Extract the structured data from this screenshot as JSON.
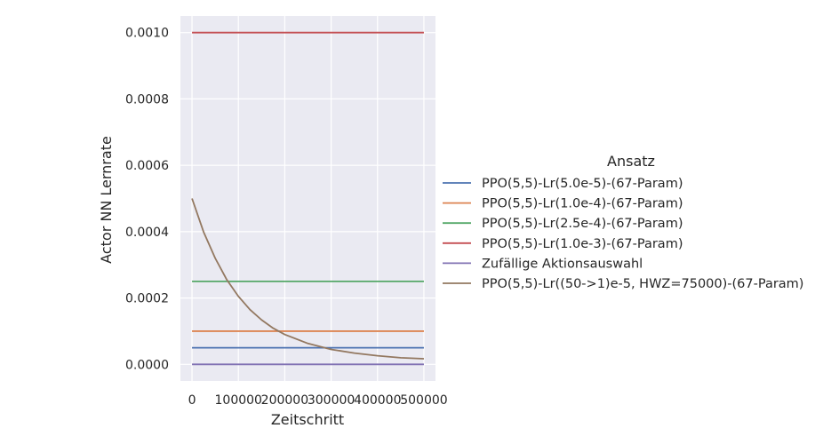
{
  "chart_data": {
    "type": "line",
    "xlabel": "Zeitschritt",
    "ylabel": "Actor NN Lernrate",
    "xlim": [
      -25000,
      525000
    ],
    "ylim": [
      -5e-05,
      0.00105
    ],
    "xticks": [
      0,
      100000,
      200000,
      300000,
      400000,
      500000
    ],
    "xtick_labels": [
      "0",
      "100000",
      "200000",
      "300000",
      "400000",
      "500000"
    ],
    "yticks": [
      0.0,
      0.0002,
      0.0004,
      0.0006,
      0.0008,
      0.001
    ],
    "ytick_labels": [
      "0.0000",
      "0.0002",
      "0.0004",
      "0.0006",
      "0.0008",
      "0.0010"
    ],
    "grid": true,
    "legend_title": "Ansatz",
    "legend_position": "right",
    "series": [
      {
        "name": "PPO(5,5)-Lr(5.0e-5)-(67-Param)",
        "color": "#4c72b0",
        "x": [
          0,
          500000
        ],
        "y": [
          5e-05,
          5e-05
        ]
      },
      {
        "name": "PPO(5,5)-Lr(1.0e-4)-(67-Param)",
        "color": "#dd8452",
        "x": [
          0,
          500000
        ],
        "y": [
          0.0001,
          0.0001
        ]
      },
      {
        "name": "PPO(5,5)-Lr(2.5e-4)-(67-Param)",
        "color": "#55a868",
        "x": [
          0,
          500000
        ],
        "y": [
          0.00025,
          0.00025
        ]
      },
      {
        "name": "PPO(5,5)-Lr(1.0e-3)-(67-Param)",
        "color": "#c44e52",
        "x": [
          0,
          500000
        ],
        "y": [
          0.001,
          0.001
        ]
      },
      {
        "name": "Zufällige Aktionsauswahl",
        "color": "#8172b3",
        "x": [
          0,
          500000
        ],
        "y": [
          0.0,
          0.0
        ]
      },
      {
        "name": "PPO(5,5)-Lr((50->1)e-5, HWZ=75000)-(67-Param)",
        "color": "#937860",
        "x": [
          0,
          25000,
          50000,
          75000,
          100000,
          125000,
          150000,
          175000,
          200000,
          250000,
          300000,
          350000,
          400000,
          450000,
          500000
        ],
        "y": [
          0.0005,
          0.000399,
          0.00032,
          0.000255,
          0.000205,
          0.000165,
          0.000134,
          0.000109,
          9e-05,
          6.3e-05,
          4.5e-05,
          3.4e-05,
          2.6e-05,
          2e-05,
          1.7e-05
        ]
      }
    ]
  }
}
